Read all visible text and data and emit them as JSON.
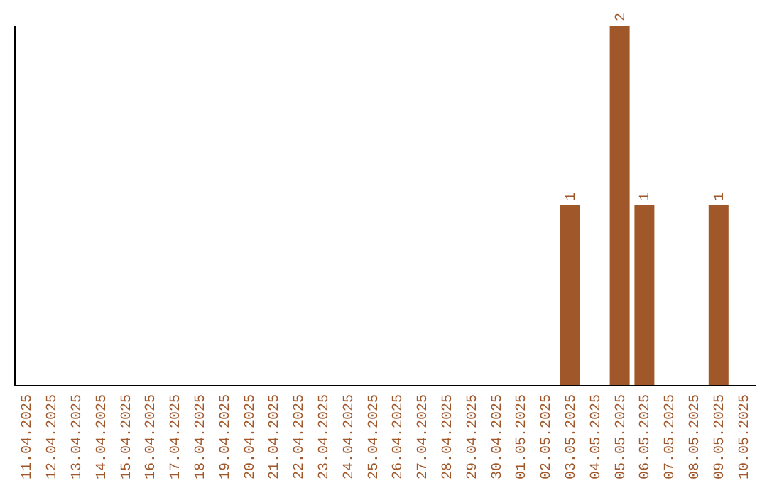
{
  "chart_data": {
    "type": "bar",
    "categories": [
      "11.04.2025",
      "12.04.2025",
      "13.04.2025",
      "14.04.2025",
      "15.04.2025",
      "16.04.2025",
      "17.04.2025",
      "18.04.2025",
      "19.04.2025",
      "20.04.2025",
      "21.04.2025",
      "22.04.2025",
      "23.04.2025",
      "24.04.2025",
      "25.04.2025",
      "26.04.2025",
      "27.04.2025",
      "28.04.2025",
      "29.04.2025",
      "30.04.2025",
      "01.05.2025",
      "02.05.2025",
      "03.05.2025",
      "04.05.2025",
      "05.05.2025",
      "06.05.2025",
      "07.05.2025",
      "08.05.2025",
      "09.05.2025",
      "10.05.2025"
    ],
    "values": [
      null,
      null,
      null,
      null,
      null,
      null,
      null,
      null,
      null,
      null,
      null,
      null,
      null,
      null,
      null,
      null,
      null,
      null,
      null,
      null,
      null,
      null,
      1,
      null,
      2,
      1,
      null,
      null,
      1,
      null
    ],
    "data_labels": true,
    "color": "#a0572a",
    "tick_labels": "x",
    "grid": false
  }
}
